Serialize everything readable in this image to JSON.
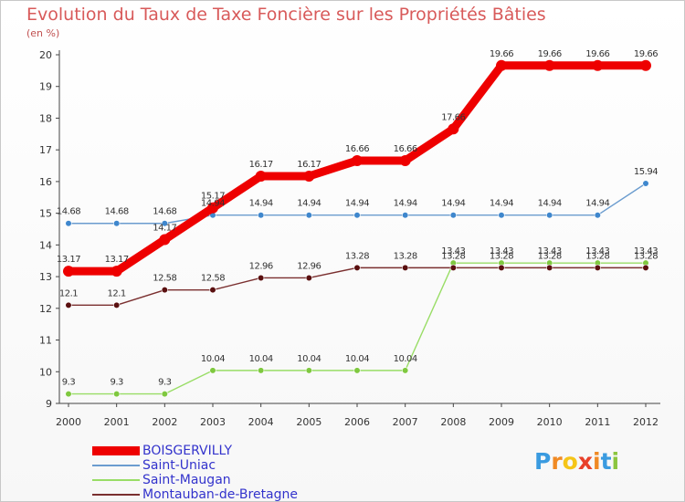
{
  "title": "Evolution du Taux de Taxe Foncière sur les Propriétés Bâties",
  "unit_label": "(en %)",
  "brand": {
    "letters": [
      "P",
      "r",
      "o",
      "x",
      "i",
      "t",
      "i"
    ],
    "colors": [
      "#3a9be0",
      "#f08a24",
      "#f5c518",
      "#e8402a",
      "#f08a24",
      "#3a9be0",
      "#8cc63f"
    ]
  },
  "chart_data": {
    "type": "line",
    "title": "Evolution du Taux de Taxe Foncière sur les Propriétés Bâties",
    "ylabel": "(en %)",
    "xlabel": "",
    "ylim": [
      9,
      20
    ],
    "yticks": [
      9,
      10,
      11,
      12,
      13,
      14,
      15,
      16,
      17,
      18,
      19,
      20
    ],
    "categories": [
      "2000",
      "2001",
      "2002",
      "2003",
      "2004",
      "2005",
      "2006",
      "2007",
      "2008",
      "2009",
      "2010",
      "2011",
      "2012"
    ],
    "legend_position": "bottom-left",
    "series": [
      {
        "name": "BOISGERVILLY",
        "color": "#ee0000",
        "thick": true,
        "values": [
          13.17,
          13.17,
          14.17,
          15.17,
          16.17,
          16.17,
          16.66,
          16.66,
          17.66,
          19.66,
          19.66,
          19.66,
          19.66
        ],
        "labels": [
          "13.17",
          "13.17",
          "14.17",
          "15.17",
          "16.17",
          "16.17",
          "16.66",
          "16.66",
          "17.66",
          "19.66",
          "19.66",
          "19.66",
          "19.66"
        ]
      },
      {
        "name": "Saint-Uniac",
        "color": "#6b9ccf",
        "point_color": "#3f87cd",
        "thick": false,
        "values": [
          14.68,
          14.68,
          14.68,
          14.94,
          14.94,
          14.94,
          14.94,
          14.94,
          14.94,
          14.94,
          14.94,
          14.94,
          15.94
        ],
        "labels": [
          "14.68",
          "14.68",
          "14.68",
          "14.94",
          "14.94",
          "14.94",
          "14.94",
          "14.94",
          "14.94",
          "14.94",
          "14.94",
          "14.94",
          "15.94"
        ]
      },
      {
        "name": "Saint-Maugan",
        "color": "#99dd66",
        "point_color": "#7fc83f",
        "thick": false,
        "values": [
          9.3,
          9.3,
          9.3,
          10.04,
          10.04,
          10.04,
          10.04,
          10.04,
          13.43,
          13.43,
          13.43,
          13.43,
          13.43
        ],
        "labels": [
          "9.3",
          "9.3",
          "9.3",
          "10.04",
          "10.04",
          "10.04",
          "10.04",
          "10.04",
          "13.43",
          "13.43",
          "13.43",
          "13.43",
          "13.43"
        ]
      },
      {
        "name": "Montauban-de-Bretagne",
        "color": "#7a2f2f",
        "point_color": "#5a1010",
        "thick": false,
        "values": [
          12.1,
          12.1,
          12.58,
          12.58,
          12.96,
          12.96,
          13.28,
          13.28,
          13.28,
          13.28,
          13.28,
          13.28,
          13.28
        ],
        "labels": [
          "12.1",
          "12.1",
          "12.58",
          "12.58",
          "12.96",
          "12.96",
          "13.28",
          "13.28",
          "13.28",
          "13.28",
          "13.28",
          "13.28",
          "13.28"
        ]
      }
    ]
  }
}
